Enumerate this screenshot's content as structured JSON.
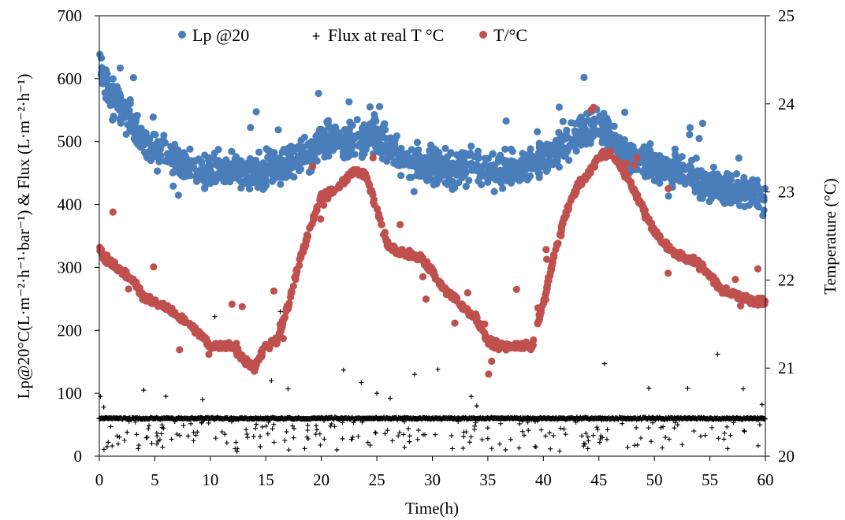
{
  "chart_data": {
    "type": "scatter",
    "xlabel": "Time(h)",
    "ylabel_left": "Lp@20°C(L·m⁻²·h⁻¹·bar⁻¹) & Flux (L·m⁻²·h⁻¹)",
    "ylabel_right": "Temperature (°C)",
    "xlim": [
      0,
      60
    ],
    "ylim_left": [
      0,
      700
    ],
    "ylim_right": [
      20,
      25
    ],
    "x_ticks": [
      "0",
      "5",
      "10",
      "15",
      "20",
      "25",
      "30",
      "35",
      "40",
      "45",
      "50",
      "55",
      "60"
    ],
    "y_left_ticks": [
      "0",
      "100",
      "200",
      "300",
      "400",
      "500",
      "600",
      "700"
    ],
    "y_right_ticks": [
      "20",
      "21",
      "22",
      "23",
      "24",
      "25"
    ],
    "grid": false,
    "legend_position": "top",
    "colors": {
      "lp": "#4a7ebb",
      "flux": "#000000",
      "temp": "#c0504d"
    },
    "series": [
      {
        "name": "Lp @20",
        "axis": "left",
        "marker": "circle",
        "x": [
          0,
          0.5,
          1,
          2,
          3,
          4,
          5,
          6,
          7,
          8,
          9,
          10,
          11,
          12,
          13,
          14,
          15,
          16,
          17,
          18,
          19,
          20,
          21,
          22,
          23,
          24,
          25,
          26,
          27,
          28,
          29,
          30,
          31,
          32,
          33,
          34,
          35,
          36,
          37,
          38,
          39,
          40,
          41,
          42,
          43,
          44,
          45,
          46,
          47,
          48,
          49,
          50,
          51,
          52,
          53,
          54,
          55,
          56,
          57,
          58,
          59,
          60
        ],
        "y": [
          625,
          595,
          575,
          550,
          525,
          505,
          490,
          480,
          470,
          462,
          458,
          455,
          455,
          455,
          452,
          452,
          455,
          460,
          465,
          470,
          478,
          500,
          505,
          500,
          500,
          505,
          515,
          495,
          478,
          470,
          465,
          462,
          460,
          458,
          458,
          456,
          455,
          455,
          456,
          458,
          460,
          470,
          485,
          495,
          505,
          520,
          525,
          505,
          490,
          475,
          468,
          462,
          460,
          455,
          450,
          440,
          432,
          425,
          420,
          418,
          416,
          415
        ]
      },
      {
        "name": "Flux at real T °C",
        "axis": "left",
        "marker": "plus",
        "baseline": 60,
        "x": [
          0.1,
          0.4,
          0.8,
          1.6,
          2.5,
          4.0,
          5.2,
          6.0,
          7.0,
          8.0,
          9.3,
          10.4,
          11.3,
          13.3,
          15.5,
          16.3,
          17.0,
          19.5,
          22.0,
          23.6,
          25.0,
          26.2,
          28.4,
          30.5,
          33.5,
          34.0,
          35.0,
          40.2,
          42.0,
          45.5,
          49.5,
          51.0,
          53.0,
          55.7,
          58.0,
          59.7,
          0.7,
          3.5,
          12.4,
          14.5,
          18.5,
          21.4,
          27.5,
          31.8,
          36.6,
          44.0,
          47.6,
          56.6
        ],
        "y": [
          95,
          78,
          22,
          32,
          38,
          105,
          32,
          95,
          35,
          32,
          90,
          222,
          35,
          35,
          120,
          230,
          107,
          35,
          137,
          117,
          100,
          92,
          130,
          138,
          95,
          80,
          28,
          32,
          35,
          147,
          108,
          30,
          108,
          162,
          107,
          82,
          15,
          12,
          8,
          15,
          12,
          10,
          14,
          12,
          10,
          12,
          14,
          12
        ]
      },
      {
        "name": "T/°C",
        "axis": "right",
        "marker": "circle",
        "x": [
          0,
          0.5,
          1,
          2,
          3,
          4,
          5,
          6,
          7,
          8,
          9,
          10,
          11,
          12,
          13,
          14,
          15,
          16,
          17,
          18,
          19,
          20,
          21,
          22,
          23,
          24,
          25,
          26,
          27,
          28,
          29,
          30,
          31,
          32,
          33,
          34,
          35,
          36,
          37,
          38,
          39,
          40,
          41,
          42,
          43,
          44,
          45,
          46,
          47,
          48,
          49,
          50,
          51,
          52,
          53,
          54,
          55,
          56,
          57,
          58,
          59,
          60
        ],
        "y": [
          22.35,
          22.25,
          22.2,
          22.1,
          22.0,
          21.8,
          21.75,
          21.7,
          21.6,
          21.5,
          21.4,
          21.25,
          21.25,
          21.25,
          21.1,
          21.0,
          21.25,
          21.3,
          21.7,
          22.2,
          22.6,
          22.95,
          23.0,
          23.1,
          23.25,
          23.2,
          22.8,
          22.4,
          22.3,
          22.3,
          22.25,
          22.1,
          21.9,
          21.8,
          21.65,
          21.55,
          21.3,
          21.25,
          21.25,
          21.25,
          21.25,
          21.75,
          22.3,
          22.75,
          23.05,
          23.2,
          23.4,
          23.45,
          23.3,
          23.05,
          22.8,
          22.55,
          22.4,
          22.3,
          22.25,
          22.2,
          22.05,
          21.9,
          21.85,
          21.8,
          21.75,
          21.75
        ]
      }
    ]
  }
}
